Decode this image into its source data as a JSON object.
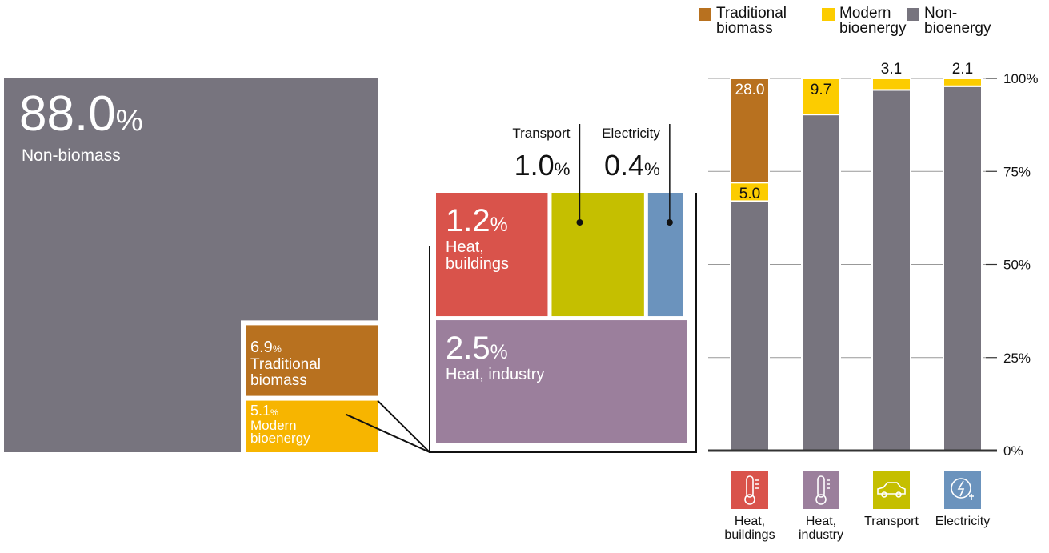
{
  "unit": "%",
  "treemap": {
    "items": [
      {
        "name": "Non-biomass",
        "value": 88.0,
        "value_label": "88.0",
        "color": "#77747e"
      },
      {
        "name": "Traditional biomass",
        "value": 6.9,
        "value_label": "6.9",
        "color": "#b8711f"
      },
      {
        "name": "Modern bioenergy",
        "value": 5.1,
        "value_label": "5.1",
        "color": "#f7b500"
      }
    ]
  },
  "breakdown": {
    "items": [
      {
        "name": "Heat, buildings",
        "value": 1.2,
        "value_label": "1.2",
        "color": "#d9534b"
      },
      {
        "name": "Transport",
        "value": 1.0,
        "value_label": "1.0",
        "color": "#c5bf00"
      },
      {
        "name": "Electricity",
        "value": 0.4,
        "value_label": "0.4",
        "color": "#6b93bd"
      },
      {
        "name": "Heat, industry",
        "value": 2.5,
        "value_label": "2.5",
        "color": "#9b7f9c"
      }
    ]
  },
  "chart_data": {
    "type": "bar",
    "stacked": true,
    "categories": [
      "Heat, buildings",
      "Heat, industry",
      "Transport",
      "Electricity"
    ],
    "category_colors": [
      "#d9534b",
      "#9b7f9c",
      "#c5bf00",
      "#6b93bd"
    ],
    "series": [
      {
        "name": "Traditional biomass",
        "color": "#b8711f",
        "values": [
          28.0,
          null,
          null,
          null
        ],
        "value_labels": [
          "28.0",
          null,
          null,
          null
        ]
      },
      {
        "name": "Modern bioenergy",
        "color": "#fccc00",
        "values": [
          5.0,
          9.7,
          3.1,
          2.1
        ],
        "value_labels": [
          "5.0",
          "9.7",
          "3.1",
          "2.1"
        ]
      },
      {
        "name": "Non-bioenergy",
        "color": "#77747e",
        "values": [
          67.0,
          90.3,
          96.9,
          97.9
        ]
      }
    ],
    "ylim": [
      0,
      100
    ],
    "yticks": [
      {
        "value": 0,
        "label": "0%"
      },
      {
        "value": 25,
        "label": "25%"
      },
      {
        "value": 50,
        "label": "50%"
      },
      {
        "value": 75,
        "label": "75%"
      },
      {
        "value": 100,
        "label": "100%"
      }
    ],
    "grid": true,
    "legend": "top"
  }
}
